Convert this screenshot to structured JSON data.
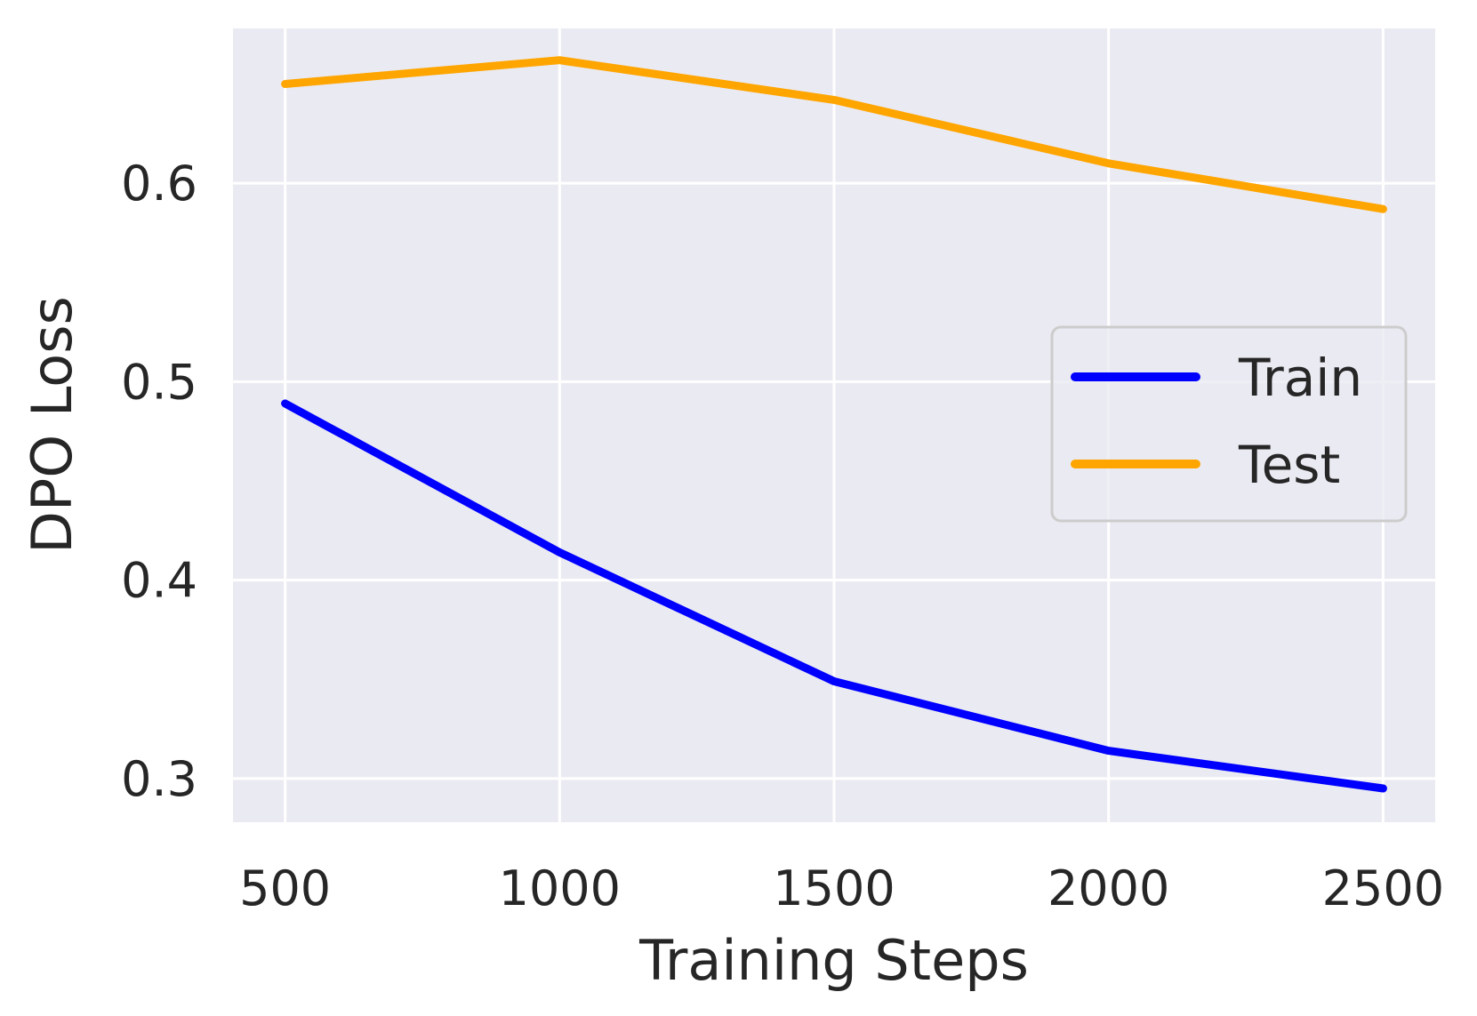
{
  "chart_data": {
    "type": "line",
    "title": "",
    "xlabel": "Training Steps",
    "ylabel": "DPO Loss",
    "x": [
      500,
      1000,
      1500,
      2000,
      2500
    ],
    "xticks": [
      "500",
      "1000",
      "1500",
      "2000",
      "2500"
    ],
    "yticks": [
      "0.3",
      "0.4",
      "0.5",
      "0.6"
    ],
    "ytick_values": [
      0.3,
      0.4,
      0.5,
      0.6
    ],
    "xlim": [
      405,
      2595
    ],
    "ylim": [
      0.278,
      0.678
    ],
    "grid": true,
    "legend_position": "center-right",
    "series": [
      {
        "name": "Train",
        "color": "#0000ff",
        "values": [
          0.489,
          0.414,
          0.349,
          0.314,
          0.295
        ]
      },
      {
        "name": "Test",
        "color": "#ffa500",
        "values": [
          0.65,
          0.662,
          0.642,
          0.61,
          0.587
        ]
      }
    ],
    "colors": {
      "plot_background": "#eaeaf2",
      "grid": "#ffffff",
      "text": "#262626"
    }
  }
}
